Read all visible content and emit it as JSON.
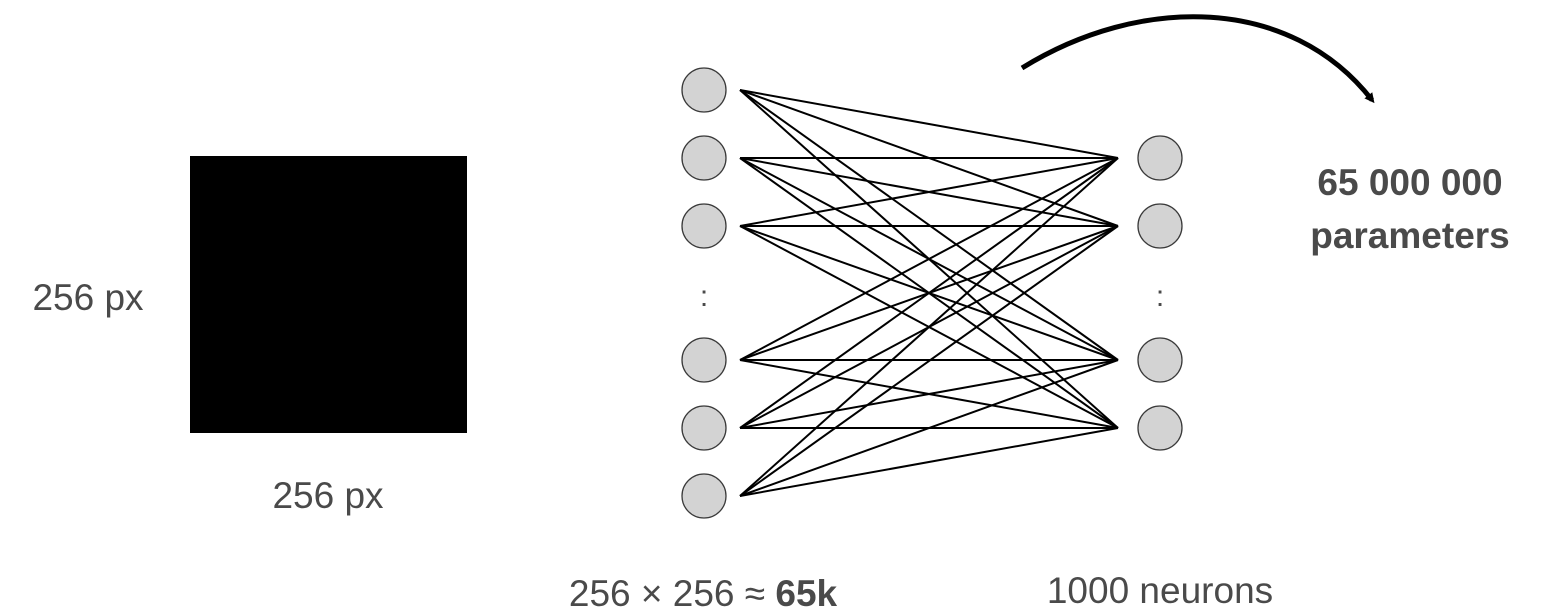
{
  "image": {
    "color": "#000000",
    "height_label": "256 px",
    "width_label": "256 px"
  },
  "input_layer": {
    "caption_prefix": "256 × 256 ≈ ",
    "caption_bold": "65k",
    "ellipsis": ":"
  },
  "output_layer": {
    "caption": "1000 neurons",
    "ellipsis": ":"
  },
  "parameters": {
    "line1": "65 000 000",
    "line2": "parameters"
  },
  "colors": {
    "neuron_fill": "#d3d3d3",
    "neuron_stroke": "#3a3a3a",
    "connection": "#000000",
    "text": "#4a4a4a"
  },
  "icons": [
    "curved-arrow-icon"
  ]
}
